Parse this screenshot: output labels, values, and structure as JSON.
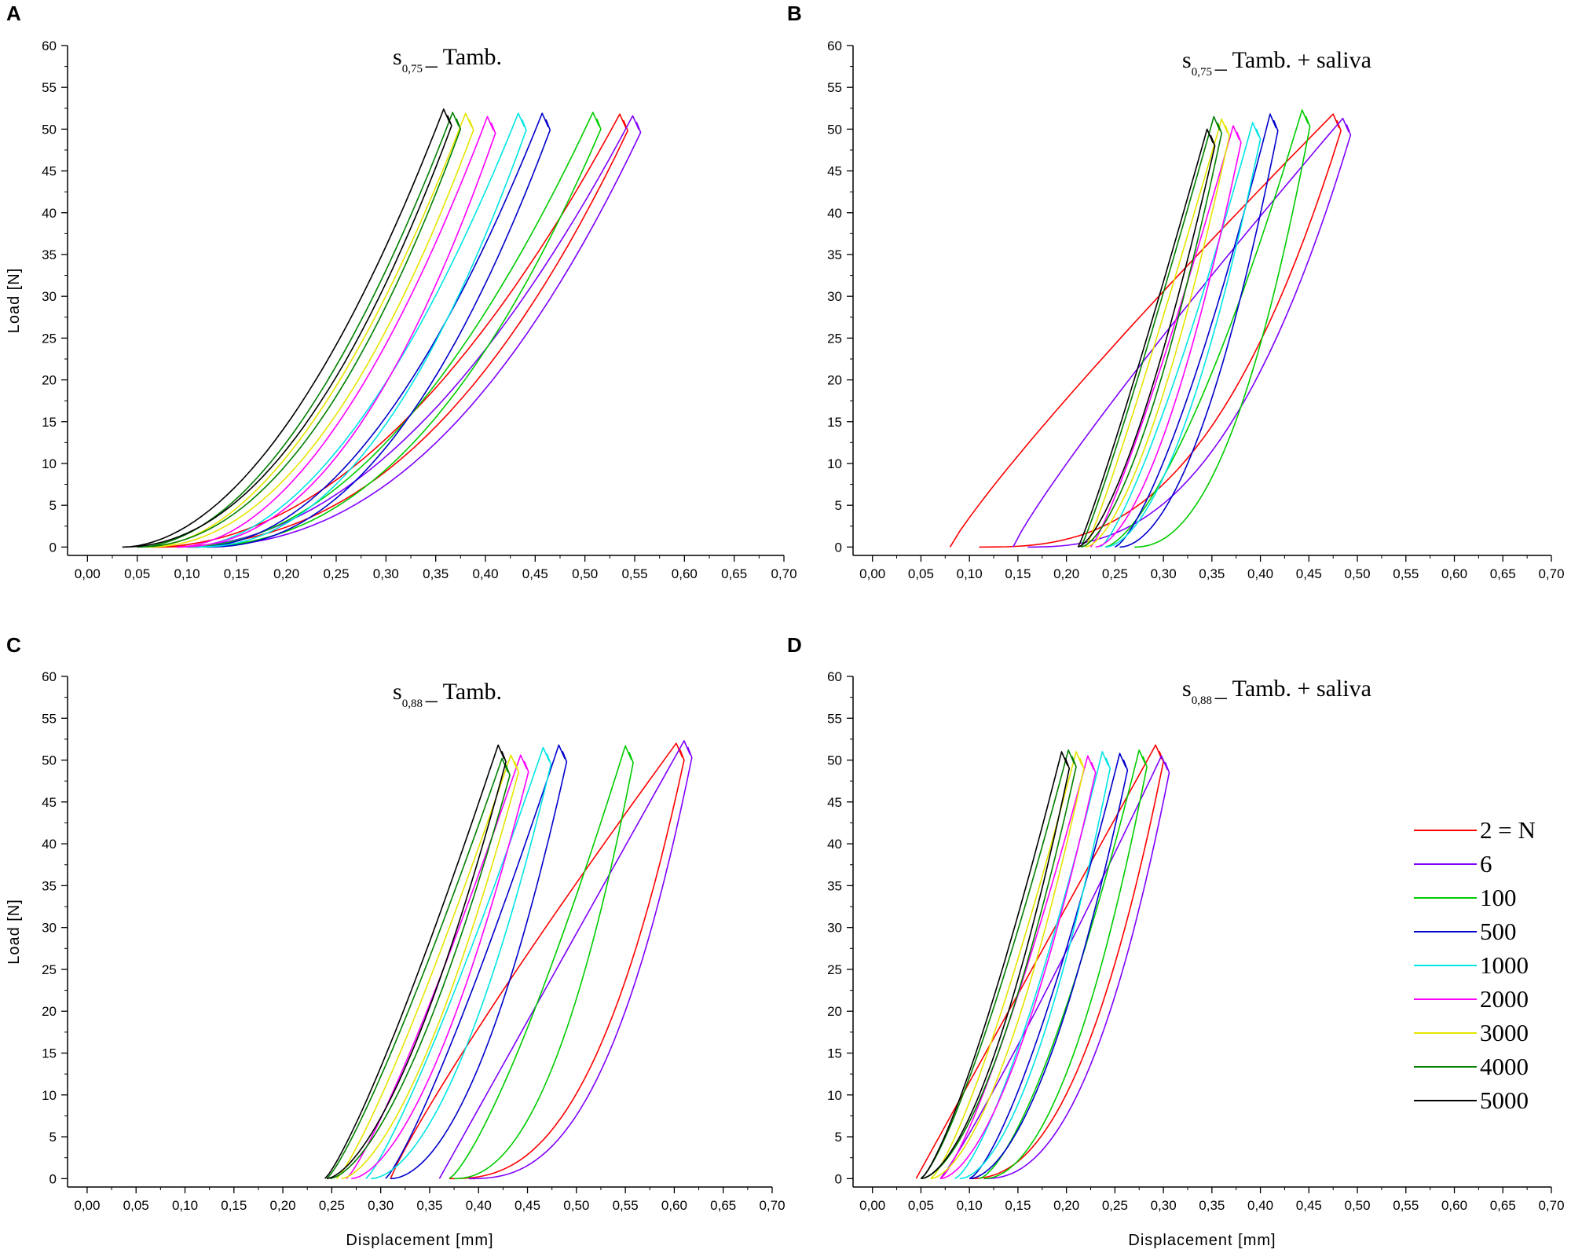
{
  "figure": {
    "ylabel": "Load [N]",
    "xlabel": "Displacement [mm]",
    "xlim": [
      -0.02,
      0.7
    ],
    "ylim": [
      -1,
      60
    ],
    "xticks": [
      "0,00",
      "0,05",
      "0,10",
      "0,15",
      "0,20",
      "0,25",
      "0,30",
      "0,35",
      "0,40",
      "0,45",
      "0,50",
      "0,55",
      "0,60",
      "0,65",
      "0,70"
    ],
    "yticks": [
      "0",
      "5",
      "10",
      "15",
      "20",
      "25",
      "30",
      "35",
      "40",
      "45",
      "50",
      "55",
      "60"
    ]
  },
  "legend": {
    "entries": [
      {
        "label": "2 = N",
        "color": "#ff0000"
      },
      {
        "label": "6",
        "color": "#8000ff"
      },
      {
        "label": "100",
        "color": "#00cc00"
      },
      {
        "label": "500",
        "color": "#0000cc"
      },
      {
        "label": "1000",
        "color": "#00e5e5"
      },
      {
        "label": "2000",
        "color": "#ff00ff"
      },
      {
        "label": "3000",
        "color": "#e5e500"
      },
      {
        "label": "4000",
        "color": "#008000"
      },
      {
        "label": "5000",
        "color": "#000000"
      }
    ]
  },
  "chart_data": [
    {
      "type": "line",
      "panel": "A",
      "title_main": "s",
      "title_sub": "0,75",
      "title_rest": "_ Tamb.",
      "series": [
        {
          "name": "2 = N",
          "color": "#ff0000",
          "start": 0.065,
          "peak_x": 0.535,
          "peak_y": 51.8,
          "end": 0.065,
          "k": 2.0,
          "u": 2.4
        },
        {
          "name": "6",
          "color": "#8000ff",
          "start": 0.09,
          "peak_x": 0.548,
          "peak_y": 51.6,
          "end": 0.1,
          "k": 2.0,
          "u": 2.3
        },
        {
          "name": "100",
          "color": "#00cc00",
          "start": 0.1,
          "peak_x": 0.508,
          "peak_y": 52.0,
          "end": 0.1,
          "k": 2.0,
          "u": 2.3
        },
        {
          "name": "500",
          "color": "#0000cc",
          "start": 0.11,
          "peak_x": 0.457,
          "peak_y": 51.9,
          "end": 0.12,
          "k": 2.0,
          "u": 2.2
        },
        {
          "name": "1000",
          "color": "#00e5e5",
          "start": 0.1,
          "peak_x": 0.433,
          "peak_y": 51.9,
          "end": 0.11,
          "k": 1.9,
          "u": 2.2
        },
        {
          "name": "2000",
          "color": "#ff00ff",
          "start": 0.09,
          "peak_x": 0.402,
          "peak_y": 51.5,
          "end": 0.09,
          "k": 1.9,
          "u": 2.2
        },
        {
          "name": "3000",
          "color": "#e5e500",
          "start": 0.06,
          "peak_x": 0.38,
          "peak_y": 51.9,
          "end": 0.06,
          "k": 1.9,
          "u": 2.1
        },
        {
          "name": "4000",
          "color": "#008000",
          "start": 0.05,
          "peak_x": 0.367,
          "peak_y": 52.0,
          "end": 0.05,
          "k": 1.9,
          "u": 2.1
        },
        {
          "name": "5000",
          "color": "#000000",
          "start": 0.035,
          "peak_x": 0.358,
          "peak_y": 52.4,
          "end": 0.035,
          "k": 1.9,
          "u": 2.1
        }
      ]
    },
    {
      "type": "line",
      "panel": "B",
      "title_main": "s",
      "title_sub": "0,75",
      "title_rest": "_ Tamb. + saliva",
      "series": [
        {
          "name": "2 = N",
          "color": "#ff0000",
          "start": 0.08,
          "peak_x": 0.475,
          "peak_y": 51.8,
          "end": 0.11,
          "k": 0.9,
          "u": 2.8
        },
        {
          "name": "6",
          "color": "#8000ff",
          "start": 0.145,
          "peak_x": 0.485,
          "peak_y": 51.3,
          "end": 0.16,
          "k": 0.9,
          "u": 2.6
        },
        {
          "name": "100",
          "color": "#00cc00",
          "start": 0.24,
          "peak_x": 0.443,
          "peak_y": 52.3,
          "end": 0.27,
          "k": 1.5,
          "u": 2.2
        },
        {
          "name": "500",
          "color": "#0000cc",
          "start": 0.25,
          "peak_x": 0.41,
          "peak_y": 51.8,
          "end": 0.255,
          "k": 1.4,
          "u": 1.9
        },
        {
          "name": "1000",
          "color": "#00e5e5",
          "start": 0.235,
          "peak_x": 0.392,
          "peak_y": 50.8,
          "end": 0.24,
          "k": 1.3,
          "u": 1.8
        },
        {
          "name": "2000",
          "color": "#ff00ff",
          "start": 0.225,
          "peak_x": 0.372,
          "peak_y": 50.4,
          "end": 0.23,
          "k": 1.2,
          "u": 1.7
        },
        {
          "name": "3000",
          "color": "#e5e500",
          "start": 0.22,
          "peak_x": 0.36,
          "peak_y": 51.2,
          "end": 0.22,
          "k": 1.1,
          "u": 1.6
        },
        {
          "name": "4000",
          "color": "#008000",
          "start": 0.215,
          "peak_x": 0.352,
          "peak_y": 51.5,
          "end": 0.215,
          "k": 1.1,
          "u": 1.6
        },
        {
          "name": "5000",
          "color": "#000000",
          "start": 0.212,
          "peak_x": 0.345,
          "peak_y": 50.0,
          "end": 0.212,
          "k": 1.1,
          "u": 1.5
        }
      ]
    },
    {
      "type": "line",
      "panel": "C",
      "title_main": "s",
      "title_sub": "0,88",
      "title_rest": "_ Tamb.",
      "series": [
        {
          "name": "2 = N",
          "color": "#ff0000",
          "start": 0.31,
          "peak_x": 0.602,
          "peak_y": 52.0,
          "end": 0.37,
          "k": 0.9,
          "u": 2.6
        },
        {
          "name": "6",
          "color": "#8000ff",
          "start": 0.36,
          "peak_x": 0.61,
          "peak_y": 52.3,
          "end": 0.39,
          "k": 1.0,
          "u": 2.6
        },
        {
          "name": "100",
          "color": "#00cc00",
          "start": 0.37,
          "peak_x": 0.55,
          "peak_y": 51.7,
          "end": 0.375,
          "k": 1.3,
          "u": 2.2
        },
        {
          "name": "500",
          "color": "#0000cc",
          "start": 0.305,
          "peak_x": 0.482,
          "peak_y": 51.8,
          "end": 0.31,
          "k": 1.2,
          "u": 1.9
        },
        {
          "name": "1000",
          "color": "#00e5e5",
          "start": 0.285,
          "peak_x": 0.466,
          "peak_y": 51.5,
          "end": 0.29,
          "k": 1.2,
          "u": 1.8
        },
        {
          "name": "2000",
          "color": "#ff00ff",
          "start": 0.265,
          "peak_x": 0.443,
          "peak_y": 50.6,
          "end": 0.27,
          "k": 1.2,
          "u": 1.7
        },
        {
          "name": "3000",
          "color": "#e5e500",
          "start": 0.255,
          "peak_x": 0.433,
          "peak_y": 50.6,
          "end": 0.26,
          "k": 1.2,
          "u": 1.6
        },
        {
          "name": "4000",
          "color": "#008000",
          "start": 0.245,
          "peak_x": 0.424,
          "peak_y": 50.2,
          "end": 0.248,
          "k": 1.2,
          "u": 1.6
        },
        {
          "name": "5000",
          "color": "#000000",
          "start": 0.243,
          "peak_x": 0.42,
          "peak_y": 51.8,
          "end": 0.245,
          "k": 1.2,
          "u": 1.6
        }
      ]
    },
    {
      "type": "line",
      "panel": "D",
      "title_main": "s",
      "title_sub": "0,88",
      "title_rest": "_ Tamb. + saliva",
      "series": [
        {
          "name": "2 = N",
          "color": "#ff0000",
          "start": 0.045,
          "peak_x": 0.292,
          "peak_y": 51.8,
          "end": 0.1,
          "k": 1.0,
          "u": 2.3
        },
        {
          "name": "6",
          "color": "#8000ff",
          "start": 0.07,
          "peak_x": 0.298,
          "peak_y": 50.5,
          "end": 0.115,
          "k": 1.1,
          "u": 2.3
        },
        {
          "name": "100",
          "color": "#00cc00",
          "start": 0.11,
          "peak_x": 0.275,
          "peak_y": 51.2,
          "end": 0.115,
          "k": 1.5,
          "u": 2.0
        },
        {
          "name": "500",
          "color": "#0000cc",
          "start": 0.1,
          "peak_x": 0.255,
          "peak_y": 50.8,
          "end": 0.1,
          "k": 1.4,
          "u": 1.8
        },
        {
          "name": "1000",
          "color": "#00e5e5",
          "start": 0.085,
          "peak_x": 0.237,
          "peak_y": 51.0,
          "end": 0.09,
          "k": 1.4,
          "u": 1.8
        },
        {
          "name": "2000",
          "color": "#ff00ff",
          "start": 0.07,
          "peak_x": 0.222,
          "peak_y": 50.5,
          "end": 0.07,
          "k": 1.3,
          "u": 1.7
        },
        {
          "name": "3000",
          "color": "#e5e500",
          "start": 0.06,
          "peak_x": 0.21,
          "peak_y": 51.0,
          "end": 0.06,
          "k": 1.3,
          "u": 1.7
        },
        {
          "name": "4000",
          "color": "#008000",
          "start": 0.05,
          "peak_x": 0.202,
          "peak_y": 51.2,
          "end": 0.05,
          "k": 1.3,
          "u": 1.7
        },
        {
          "name": "5000",
          "color": "#000000",
          "start": 0.05,
          "peak_x": 0.195,
          "peak_y": 51.0,
          "end": 0.05,
          "k": 1.3,
          "u": 1.7
        }
      ]
    }
  ]
}
